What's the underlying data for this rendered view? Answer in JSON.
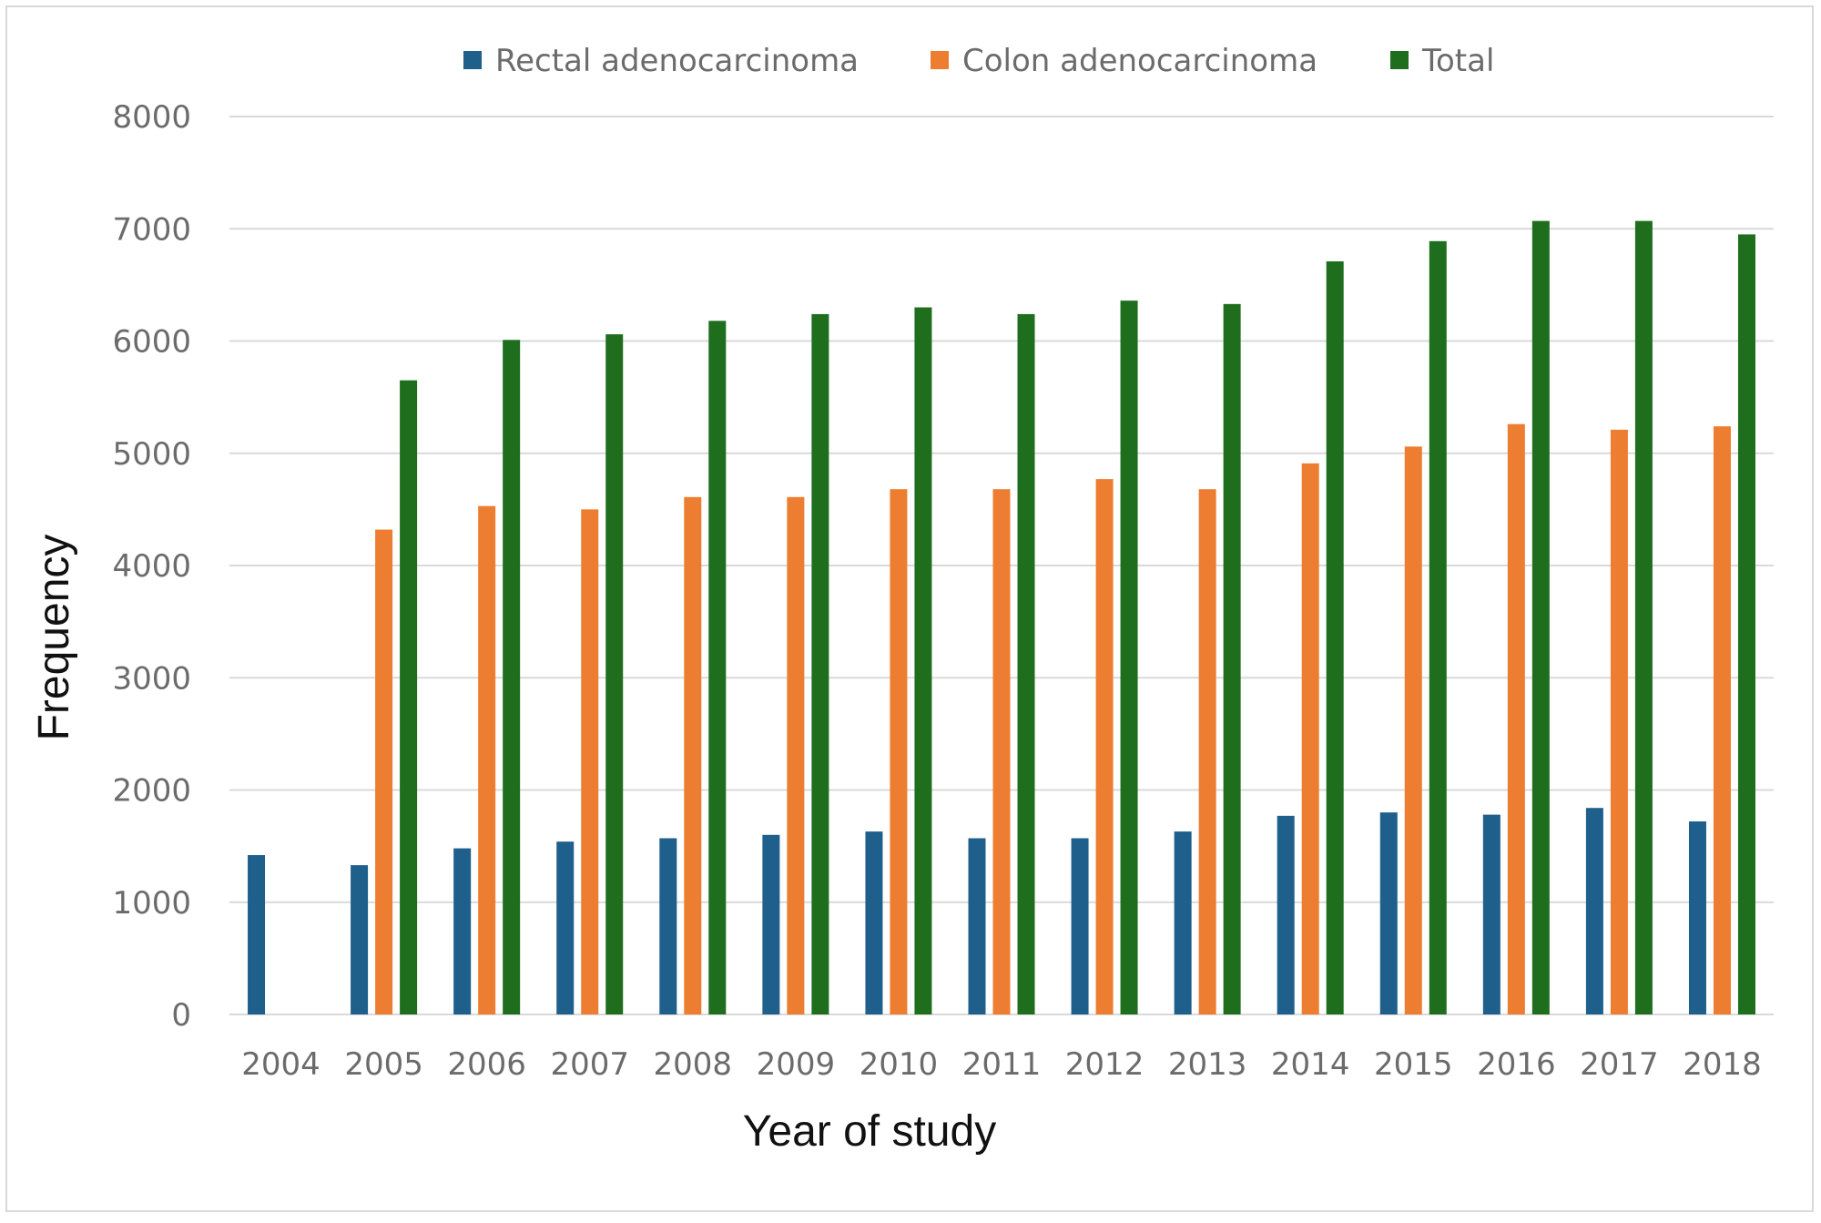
{
  "chart_data": {
    "type": "bar",
    "title": "",
    "xlabel": "Year of study",
    "ylabel": "Frequency",
    "ylim": [
      0,
      8000
    ],
    "yticks": [
      0,
      1000,
      2000,
      3000,
      4000,
      5000,
      6000,
      7000,
      8000
    ],
    "grid": true,
    "legend_position": "top-center",
    "categories": [
      "2004",
      "2005",
      "2006",
      "2007",
      "2008",
      "2009",
      "2010",
      "2011",
      "2012",
      "2013",
      "2014",
      "2015",
      "2016",
      "2017",
      "2018"
    ],
    "series": [
      {
        "name": "Rectal adenocarcinoma",
        "color": "#1f5f8b",
        "values": [
          1420,
          1330,
          1480,
          1540,
          1570,
          1600,
          1630,
          1570,
          1570,
          1630,
          1770,
          1800,
          1780,
          1840,
          1720
        ]
      },
      {
        "name": "Colon adenocarcinoma",
        "color": "#ed7d31",
        "values": [
          null,
          4320,
          4530,
          4500,
          4610,
          4610,
          4680,
          4680,
          4770,
          4680,
          4910,
          5060,
          5260,
          5210,
          5240
        ]
      },
      {
        "name": "Total",
        "color": "#1e6e1e",
        "values": [
          null,
          5650,
          6010,
          6060,
          6180,
          6240,
          6300,
          6240,
          6360,
          6330,
          6710,
          6890,
          7070,
          7070,
          6950
        ]
      }
    ]
  }
}
